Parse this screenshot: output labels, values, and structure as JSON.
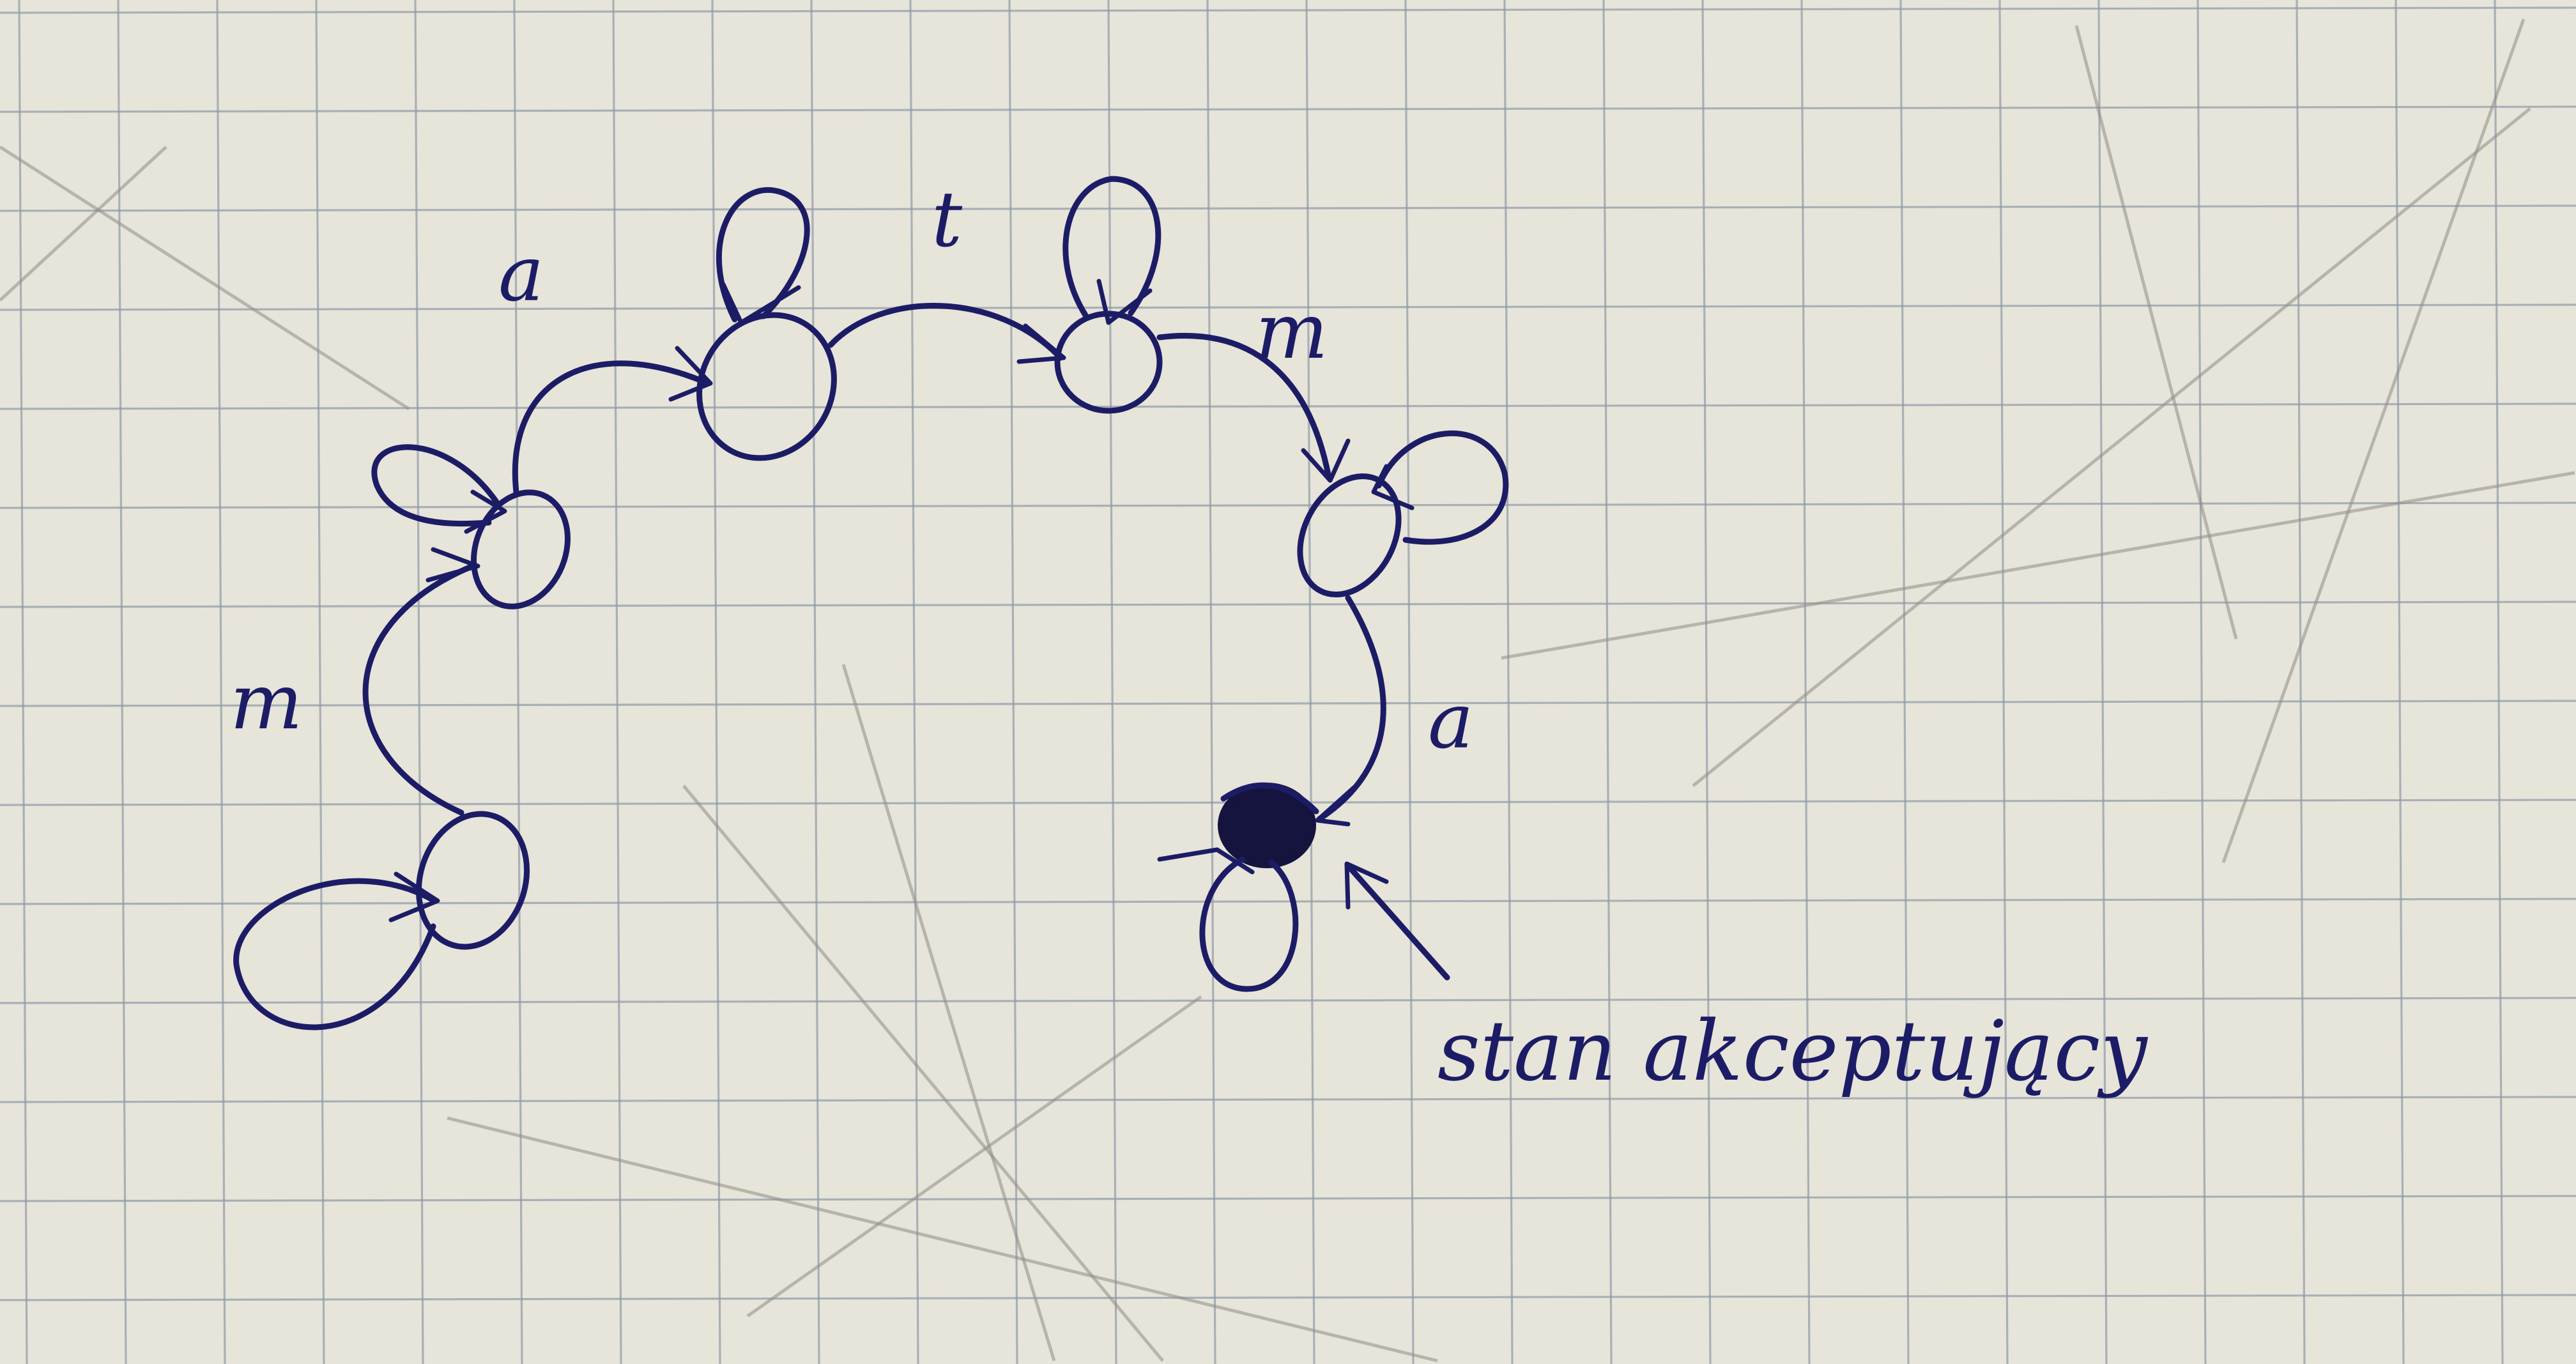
{
  "colors": {
    "paper": "#e7e4d9",
    "grid": "#8e9aa8",
    "ink": "#1c1c66",
    "pencil": "#8f8c86"
  },
  "states": [
    {
      "id": "q0",
      "accepting": false
    },
    {
      "id": "q1",
      "accepting": false
    },
    {
      "id": "q2",
      "accepting": false
    },
    {
      "id": "q3",
      "accepting": false
    },
    {
      "id": "q4",
      "accepting": false
    },
    {
      "id": "q5",
      "accepting": true
    }
  ],
  "transitions": [
    {
      "from": "q0",
      "to": "q1",
      "label": "m"
    },
    {
      "from": "q1",
      "to": "q2",
      "label": "a"
    },
    {
      "from": "q2",
      "to": "q3",
      "label": "t"
    },
    {
      "from": "q3",
      "to": "q4",
      "label": "m"
    },
    {
      "from": "q4",
      "to": "q5",
      "label": "a"
    }
  ],
  "self_loops": [
    "q0",
    "q1",
    "q2",
    "q3",
    "q4",
    "q5"
  ],
  "annotation": {
    "text": "stan akceptujący",
    "target": "q5"
  }
}
